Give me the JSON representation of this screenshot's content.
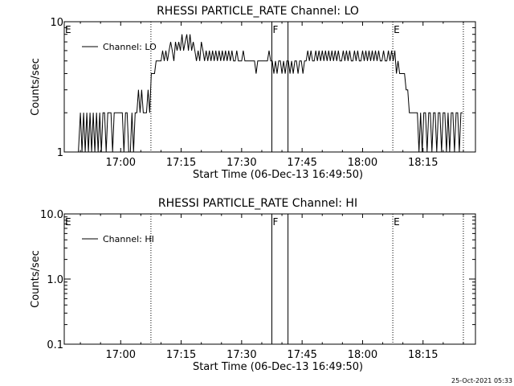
{
  "footer": {
    "timestamp": "25-Oct-2021 05:33"
  },
  "chart_data": [
    {
      "type": "line",
      "title": "RHESSI PARTICLE_RATE Channel: LO",
      "xlabel": "Start Time (06-Dec-13 16:49:50)",
      "ylabel": "Counts/sec",
      "y_scale": "log",
      "xlim_minutes": [
        -14.0,
        88.0
      ],
      "ylim": [
        1,
        10
      ],
      "xticks": [
        "17:00",
        "17:15",
        "17:30",
        "17:45",
        "18:00",
        "18:15"
      ],
      "xtick_minutes": [
        0,
        15,
        30,
        45,
        60,
        75
      ],
      "yticks": [
        {
          "label": "1",
          "value": 1
        },
        {
          "label": "10",
          "value": 10
        }
      ],
      "legend": {
        "position": "top-left",
        "label": "Channel: LO"
      },
      "markers": [
        {
          "label": "E",
          "minute": -14.0,
          "style": "dotted"
        },
        {
          "label": "",
          "minute": 7.5,
          "style": "dotted"
        },
        {
          "label": "F",
          "minute": 37.5,
          "style": "solid"
        },
        {
          "label": "",
          "minute": 41.5,
          "style": "solid"
        },
        {
          "label": "E",
          "minute": 67.5,
          "style": "dotted"
        },
        {
          "label": "",
          "minute": 85.0,
          "style": "dotted"
        }
      ],
      "series": [
        {
          "name": "Channel: LO",
          "points": [
            [
              -10.5,
              1
            ],
            [
              -10,
              2
            ],
            [
              -9.6,
              1
            ],
            [
              -9.2,
              2
            ],
            [
              -8.8,
              1
            ],
            [
              -8.4,
              2
            ],
            [
              -8,
              1
            ],
            [
              -7.6,
              2
            ],
            [
              -7.2,
              1
            ],
            [
              -6.8,
              2
            ],
            [
              -6.4,
              1
            ],
            [
              -6,
              2
            ],
            [
              -5.6,
              1
            ],
            [
              -5.2,
              2
            ],
            [
              -4.8,
              1
            ],
            [
              -4.4,
              2
            ],
            [
              -4,
              2
            ],
            [
              -3.6,
              1
            ],
            [
              -3.2,
              2
            ],
            [
              -2.8,
              2
            ],
            [
              -2.4,
              2
            ],
            [
              -2,
              1
            ],
            [
              -1.6,
              2
            ],
            [
              -1.2,
              2
            ],
            [
              -0.8,
              2
            ],
            [
              -0.4,
              2
            ],
            [
              0,
              2
            ],
            [
              0.4,
              2
            ],
            [
              0.8,
              1
            ],
            [
              1.2,
              2
            ],
            [
              1.6,
              2
            ],
            [
              2,
              1
            ],
            [
              2.4,
              1
            ],
            [
              2.8,
              2
            ],
            [
              3.2,
              1
            ],
            [
              3.6,
              2
            ],
            [
              4,
              2
            ],
            [
              4.4,
              3
            ],
            [
              4.8,
              2
            ],
            [
              5.2,
              3
            ],
            [
              5.6,
              2
            ],
            [
              6,
              2
            ],
            [
              6.4,
              2
            ],
            [
              6.8,
              3
            ],
            [
              7.2,
              2
            ],
            [
              7.6,
              4
            ],
            [
              8,
              4
            ],
            [
              8.4,
              4
            ],
            [
              8.8,
              5
            ],
            [
              9.2,
              5
            ],
            [
              9.6,
              5
            ],
            [
              10,
              5
            ],
            [
              10.4,
              6
            ],
            [
              10.8,
              5
            ],
            [
              11.2,
              6
            ],
            [
              11.6,
              5
            ],
            [
              12,
              6
            ],
            [
              12.4,
              7
            ],
            [
              12.8,
              6
            ],
            [
              13.2,
              5
            ],
            [
              13.6,
              7
            ],
            [
              14,
              6
            ],
            [
              14.4,
              7
            ],
            [
              14.8,
              6
            ],
            [
              15.2,
              8
            ],
            [
              15.6,
              6
            ],
            [
              16,
              7
            ],
            [
              16.4,
              8
            ],
            [
              16.8,
              6
            ],
            [
              17.2,
              8
            ],
            [
              17.6,
              6
            ],
            [
              18,
              7
            ],
            [
              18.4,
              6
            ],
            [
              18.8,
              5
            ],
            [
              19.2,
              6
            ],
            [
              19.6,
              5
            ],
            [
              20,
              7
            ],
            [
              20.4,
              6
            ],
            [
              20.8,
              5
            ],
            [
              21.2,
              6
            ],
            [
              21.6,
              5
            ],
            [
              22,
              6
            ],
            [
              22.4,
              5
            ],
            [
              22.8,
              6
            ],
            [
              23.2,
              5
            ],
            [
              23.6,
              6
            ],
            [
              24,
              5
            ],
            [
              24.4,
              6
            ],
            [
              24.8,
              5
            ],
            [
              25.2,
              6
            ],
            [
              25.6,
              5
            ],
            [
              26,
              6
            ],
            [
              26.4,
              5
            ],
            [
              26.8,
              6
            ],
            [
              27.2,
              5
            ],
            [
              27.6,
              6
            ],
            [
              28,
              5
            ],
            [
              28.4,
              5
            ],
            [
              28.8,
              6
            ],
            [
              29.2,
              5
            ],
            [
              29.6,
              5
            ],
            [
              30,
              5
            ],
            [
              30.4,
              6
            ],
            [
              30.8,
              5
            ],
            [
              31.2,
              5
            ],
            [
              31.6,
              5
            ],
            [
              32,
              5
            ],
            [
              32.4,
              5
            ],
            [
              32.8,
              5
            ],
            [
              33.2,
              5
            ],
            [
              33.6,
              4
            ],
            [
              34,
              5
            ],
            [
              34.4,
              5
            ],
            [
              34.8,
              5
            ],
            [
              35.2,
              5
            ],
            [
              35.6,
              5
            ],
            [
              36,
              5
            ],
            [
              36.4,
              5
            ],
            [
              36.8,
              6
            ],
            [
              37.2,
              5
            ],
            [
              37.6,
              5
            ],
            [
              38,
              4
            ],
            [
              38.4,
              5
            ],
            [
              38.8,
              4
            ],
            [
              39.2,
              5
            ],
            [
              39.6,
              5
            ],
            [
              40,
              4
            ],
            [
              40.4,
              5
            ],
            [
              40.8,
              4
            ],
            [
              41.2,
              5
            ],
            [
              41.6,
              5
            ],
            [
              42,
              4
            ],
            [
              42.4,
              5
            ],
            [
              42.8,
              4
            ],
            [
              43.2,
              5
            ],
            [
              43.6,
              5
            ],
            [
              44,
              4
            ],
            [
              44.4,
              5
            ],
            [
              44.8,
              5
            ],
            [
              45.2,
              4
            ],
            [
              45.6,
              5
            ],
            [
              46,
              5
            ],
            [
              46.4,
              6
            ],
            [
              46.8,
              5
            ],
            [
              47.2,
              6
            ],
            [
              47.6,
              5
            ],
            [
              48,
              5
            ],
            [
              48.4,
              6
            ],
            [
              48.8,
              5
            ],
            [
              49.2,
              6
            ],
            [
              49.6,
              5
            ],
            [
              50,
              6
            ],
            [
              50.4,
              5
            ],
            [
              50.8,
              6
            ],
            [
              51.2,
              5
            ],
            [
              51.6,
              6
            ],
            [
              52,
              5
            ],
            [
              52.4,
              6
            ],
            [
              52.8,
              5
            ],
            [
              53.2,
              6
            ],
            [
              53.6,
              5
            ],
            [
              54,
              6
            ],
            [
              54.4,
              5
            ],
            [
              54.8,
              5
            ],
            [
              55.2,
              6
            ],
            [
              55.6,
              5
            ],
            [
              56,
              6
            ],
            [
              56.4,
              5
            ],
            [
              56.8,
              6
            ],
            [
              57.2,
              5
            ],
            [
              57.6,
              5
            ],
            [
              58,
              6
            ],
            [
              58.4,
              5
            ],
            [
              58.8,
              6
            ],
            [
              59.2,
              5
            ],
            [
              59.6,
              5
            ],
            [
              60,
              6
            ],
            [
              60.4,
              5
            ],
            [
              60.8,
              6
            ],
            [
              61.2,
              5
            ],
            [
              61.6,
              6
            ],
            [
              62,
              5
            ],
            [
              62.4,
              6
            ],
            [
              62.8,
              5
            ],
            [
              63.2,
              6
            ],
            [
              63.6,
              5
            ],
            [
              64,
              6
            ],
            [
              64.4,
              5
            ],
            [
              64.8,
              5
            ],
            [
              65.2,
              6
            ],
            [
              65.6,
              5
            ],
            [
              66,
              5
            ],
            [
              66.4,
              6
            ],
            [
              66.8,
              5
            ],
            [
              67.2,
              6
            ],
            [
              67.6,
              5
            ],
            [
              68,
              6
            ],
            [
              68.4,
              4
            ],
            [
              68.8,
              5
            ],
            [
              69.2,
              4
            ],
            [
              69.6,
              4
            ],
            [
              70,
              4
            ],
            [
              70.4,
              4
            ],
            [
              70.8,
              3
            ],
            [
              71.2,
              3
            ],
            [
              71.6,
              2
            ],
            [
              72,
              2
            ],
            [
              72.4,
              2
            ],
            [
              72.8,
              2
            ],
            [
              73.2,
              2
            ],
            [
              73.6,
              2
            ],
            [
              74,
              1
            ],
            [
              74.4,
              2
            ],
            [
              74.8,
              1
            ],
            [
              75.2,
              2
            ],
            [
              75.6,
              2
            ],
            [
              76,
              1
            ],
            [
              76.4,
              2
            ],
            [
              76.8,
              2
            ],
            [
              77.2,
              1
            ],
            [
              77.6,
              2
            ],
            [
              78,
              2
            ],
            [
              78.4,
              1
            ],
            [
              78.8,
              2
            ],
            [
              79.2,
              2
            ],
            [
              79.6,
              1
            ],
            [
              80,
              2
            ],
            [
              80.4,
              2
            ],
            [
              80.8,
              1
            ],
            [
              81.2,
              2
            ],
            [
              81.6,
              1
            ],
            [
              82,
              2
            ],
            [
              82.4,
              2
            ],
            [
              82.8,
              1
            ],
            [
              83.2,
              2
            ],
            [
              83.6,
              2
            ],
            [
              84,
              1
            ],
            [
              84.4,
              2
            ],
            [
              84.8,
              2
            ]
          ]
        }
      ]
    },
    {
      "type": "line",
      "title": "RHESSI PARTICLE_RATE Channel: HI",
      "xlabel": "Start Time (06-Dec-13 16:49:50)",
      "ylabel": "Counts/sec",
      "y_scale": "log",
      "xlim_minutes": [
        -14.0,
        88.0
      ],
      "ylim": [
        0.1,
        10
      ],
      "xticks": [
        "17:00",
        "17:15",
        "17:30",
        "17:45",
        "18:00",
        "18:15"
      ],
      "xtick_minutes": [
        0,
        15,
        30,
        45,
        60,
        75
      ],
      "yticks": [
        {
          "label": "0.1",
          "value": 0.1
        },
        {
          "label": "1.0",
          "value": 1
        },
        {
          "label": "10.0",
          "value": 10
        }
      ],
      "legend": {
        "position": "top-left",
        "label": "Channel: HI"
      },
      "markers": [
        {
          "label": "E",
          "minute": -14.0,
          "style": "dotted"
        },
        {
          "label": "",
          "minute": 7.5,
          "style": "dotted"
        },
        {
          "label": "F",
          "minute": 37.5,
          "style": "solid"
        },
        {
          "label": "",
          "minute": 41.5,
          "style": "solid"
        },
        {
          "label": "E",
          "minute": 67.5,
          "style": "dotted"
        },
        {
          "label": "",
          "minute": 85.0,
          "style": "dotted"
        }
      ],
      "series": [
        {
          "name": "Channel: HI",
          "points": []
        }
      ]
    }
  ]
}
